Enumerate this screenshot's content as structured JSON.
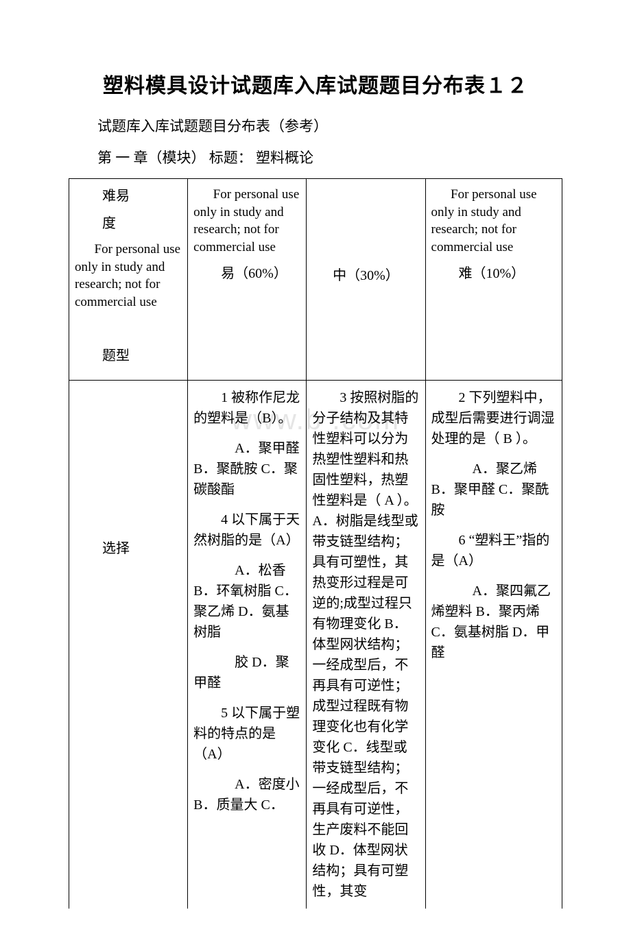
{
  "doc": {
    "title": "塑料模具设计试题库入库试题题目分布表１２",
    "subtitle": "试题库入库试题题目分布表（参考）",
    "chapter": "第 一 章（模块） 标题：  塑料概论"
  },
  "watermark": "www.b    .com",
  "header": {
    "col0": {
      "line1": "难易",
      "line2": "度",
      "en": "For personal use only in study and research; not for commercial use",
      "type_label": "题型"
    },
    "col1": {
      "en": "For personal use only in study and research; not for commercial use",
      "diff": "易（60%）"
    },
    "col2": {
      "diff": "中（30%）"
    },
    "col3": {
      "en": "For personal use only in study and research; not for commercial use",
      "diff": "难（10%）"
    }
  },
  "row": {
    "label": "选择",
    "col1": {
      "q1": "1 被称作尼龙的塑料是（B）。",
      "q1_opts": "A．聚甲醛 B．聚酰胺 C．聚碳酸酯",
      "q4": "4 以下属于天然树脂的是（A）",
      "q4_opts": "A．松香 B．环氧树脂 C．聚乙烯 D．氨基树脂",
      "q4_extra": "胶 D．聚甲醛",
      "q5": "5 以下属于塑料的特点的是（A）",
      "q5_opts": "A．密度小 B．质量大 C．"
    },
    "col2": {
      "q3": "3 按照树脂的分子结构及其特性塑料可以分为热塑性塑料和热固性塑料，热塑性塑料是（ A ）。A．树脂是线型或带支链型结构；具有可塑性，其热变形过程是可逆的;成型过程只有物理变化 B．体型网状结构；一经成型后，不再具有可逆性；成型过程既有物理变化也有化学变化 C．线型或带支链型结构；一经成型后，不再具有可逆性，生产废料不能回收 D．体型网状结构；具有可塑性，其变"
    },
    "col3": {
      "q2": "2 下列塑料中，成型后需要进行调湿处理的是（ B ）。",
      "q2_opts": "A．聚乙烯 B．聚甲醛 C．聚酰胺",
      "q6": "6 “塑料王”指的是（A）",
      "q6_opts": "A．聚四氟乙烯塑料 B．聚丙烯 C．氨基树脂 D．甲醛"
    }
  }
}
